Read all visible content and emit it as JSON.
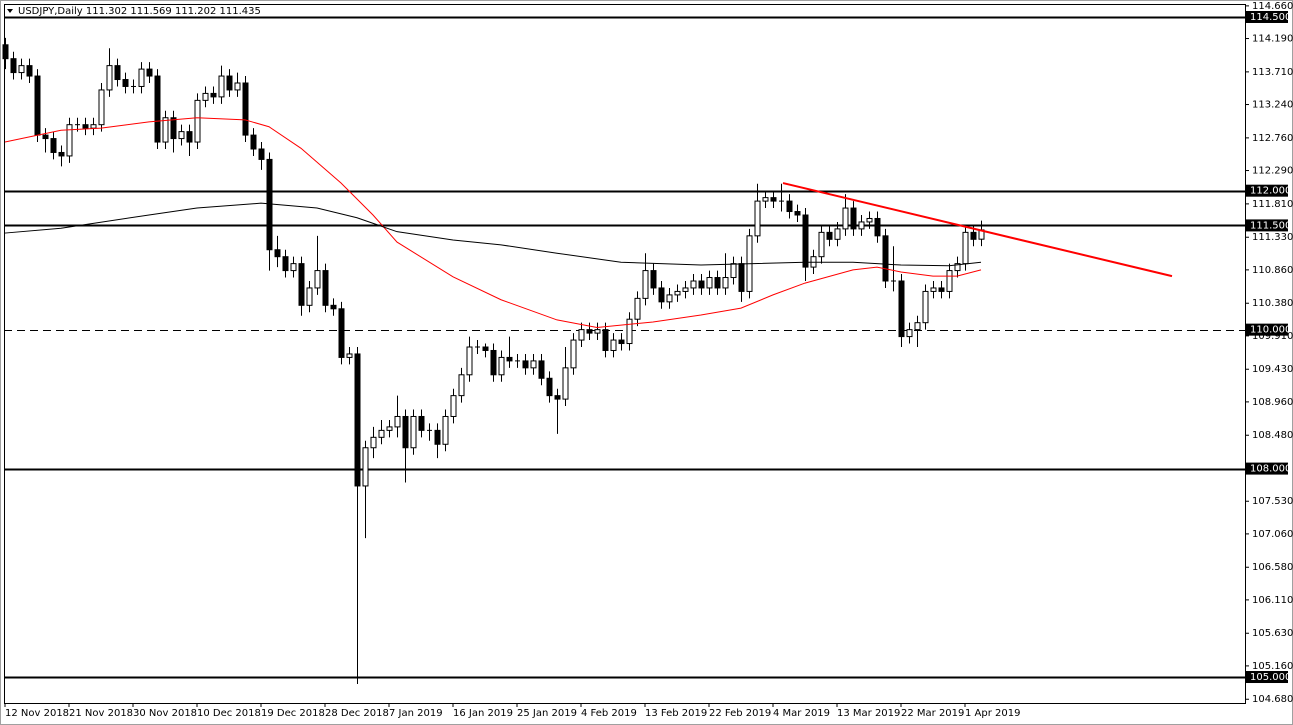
{
  "chart_data": {
    "type": "candlestick",
    "title": "USDJPY,Daily  111.302 111.569 111.202 111.435",
    "categories": [
      "12 Nov 2018",
      null,
      null,
      null,
      null,
      null,
      null,
      null,
      "21 Nov 2018",
      null,
      null,
      null,
      null,
      null,
      null,
      null,
      "30 Nov 2018",
      null,
      null,
      null,
      null,
      null,
      null,
      null,
      "10 Dec 2018",
      null,
      null,
      null,
      null,
      null,
      null,
      null,
      "19 Dec 2018",
      null,
      null,
      null,
      null,
      null,
      null,
      null,
      "28 Dec 2018",
      null,
      null,
      null,
      null,
      null,
      null,
      null,
      "7 Jan 2019",
      null,
      null,
      null,
      null,
      null,
      null,
      null,
      "16 Jan 2019",
      null,
      null,
      null,
      null,
      null,
      null,
      null,
      "25 Jan 2019",
      null,
      null,
      null,
      null,
      null,
      null,
      null,
      "4 Feb 2019",
      null,
      null,
      null,
      null,
      null,
      null,
      null,
      "13 Feb 2019",
      null,
      null,
      null,
      null,
      null,
      null,
      null,
      "22 Feb 2019",
      null,
      null,
      null,
      null,
      null,
      null,
      null,
      "4 Mar 2019",
      null,
      null,
      null,
      null,
      null,
      null,
      null,
      "13 Mar 2019",
      null,
      null,
      null,
      null,
      null,
      null,
      null,
      "22 Mar 2019",
      null,
      null,
      null,
      null,
      null,
      null,
      null,
      "1 Apr 2019",
      null,
      null
    ],
    "open": [
      114.1,
      113.9,
      113.7,
      113.8,
      113.65,
      112.8,
      112.75,
      112.55,
      112.5,
      112.95,
      112.95,
      112.9,
      112.95,
      113.45,
      113.8,
      113.6,
      113.5,
      113.5,
      113.75,
      113.65,
      112.7,
      113.05,
      112.75,
      112.85,
      112.7,
      113.3,
      113.4,
      113.35,
      113.65,
      113.45,
      113.55,
      112.8,
      112.6,
      112.45,
      111.15,
      111.05,
      110.85,
      110.95,
      110.35,
      110.6,
      110.85,
      110.35,
      110.3,
      109.6,
      109.65,
      107.75,
      108.3,
      108.45,
      108.55,
      108.6,
      108.75,
      108.3,
      108.75,
      108.55,
      108.55,
      108.35,
      108.75,
      109.05,
      109.35,
      109.75,
      109.75,
      109.7,
      109.35,
      109.6,
      109.55,
      109.55,
      109.45,
      109.55,
      109.3,
      109.05,
      109.0,
      109.45,
      109.85,
      110.0,
      109.95,
      110.0,
      109.7,
      109.85,
      109.8,
      110.15,
      110.45,
      110.85,
      110.6,
      110.4,
      110.5,
      110.55,
      110.6,
      110.7,
      110.6,
      110.75,
      110.6,
      110.75,
      110.95,
      110.55,
      111.35,
      111.85,
      111.9,
      111.85,
      111.85,
      111.7,
      111.65,
      110.9,
      111.05,
      111.4,
      111.3,
      111.45,
      111.75,
      111.45,
      111.55,
      111.6,
      111.35,
      110.7,
      110.7,
      109.9,
      110.0,
      110.1,
      110.55,
      110.6,
      110.55,
      110.85,
      110.95,
      111.4,
      111.302
    ],
    "high": [
      114.2,
      114.0,
      113.9,
      113.9,
      113.75,
      112.9,
      112.85,
      112.65,
      113.05,
      113.05,
      113.05,
      113.05,
      113.55,
      114.05,
      113.9,
      113.7,
      113.6,
      113.85,
      113.85,
      113.75,
      113.15,
      113.15,
      112.95,
      112.95,
      113.4,
      113.5,
      113.5,
      113.8,
      113.75,
      113.7,
      113.65,
      112.9,
      112.7,
      112.55,
      111.35,
      111.15,
      111.05,
      111.05,
      110.7,
      111.35,
      110.95,
      110.45,
      110.4,
      109.75,
      109.75,
      108.4,
      108.6,
      108.7,
      108.7,
      109.05,
      108.85,
      108.85,
      108.85,
      108.65,
      108.65,
      108.85,
      109.15,
      109.45,
      109.9,
      109.85,
      109.8,
      109.8,
      109.7,
      109.9,
      109.65,
      109.65,
      109.65,
      109.65,
      109.4,
      109.15,
      109.75,
      109.95,
      110.1,
      110.1,
      110.1,
      110.1,
      109.95,
      109.95,
      110.25,
      110.55,
      111.1,
      110.95,
      110.7,
      110.6,
      110.65,
      110.7,
      110.8,
      110.8,
      110.85,
      110.85,
      111.1,
      111.05,
      111.05,
      111.45,
      112.1,
      112.0,
      112.0,
      112.1,
      111.95,
      111.8,
      111.75,
      111.15,
      111.5,
      111.5,
      111.55,
      111.95,
      111.85,
      111.65,
      111.7,
      111.7,
      111.45,
      111.2,
      110.8,
      110.1,
      110.2,
      110.65,
      110.7,
      110.7,
      110.95,
      111.05,
      111.5,
      111.5,
      111.569
    ],
    "low": [
      113.75,
      113.6,
      113.6,
      113.55,
      112.7,
      112.55,
      112.45,
      112.35,
      112.4,
      112.85,
      112.8,
      112.8,
      112.85,
      113.35,
      113.5,
      113.4,
      113.4,
      113.4,
      113.55,
      112.6,
      112.6,
      112.55,
      112.65,
      112.5,
      112.6,
      113.2,
      113.25,
      113.25,
      113.35,
      113.35,
      112.7,
      112.5,
      112.3,
      110.85,
      110.9,
      110.75,
      110.75,
      110.2,
      110.25,
      110.5,
      110.25,
      110.2,
      109.5,
      109.5,
      104.9,
      107.0,
      108.15,
      108.35,
      108.45,
      108.45,
      107.8,
      108.2,
      108.45,
      108.4,
      108.15,
      108.25,
      108.65,
      108.95,
      109.25,
      109.65,
      109.6,
      109.25,
      109.25,
      109.45,
      109.45,
      109.35,
      109.35,
      109.2,
      108.95,
      108.5,
      108.9,
      109.35,
      109.75,
      109.85,
      109.85,
      109.6,
      109.6,
      109.7,
      109.7,
      110.05,
      110.35,
      110.5,
      110.3,
      110.3,
      110.4,
      110.45,
      110.5,
      110.5,
      110.5,
      110.5,
      110.5,
      110.65,
      110.4,
      110.45,
      111.25,
      111.75,
      111.75,
      111.7,
      111.6,
      111.55,
      110.7,
      110.8,
      110.95,
      111.2,
      111.2,
      111.35,
      111.35,
      111.35,
      111.45,
      111.25,
      110.6,
      110.55,
      109.75,
      109.8,
      109.75,
      110.0,
      110.45,
      110.45,
      110.45,
      110.75,
      110.85,
      111.2,
      111.202
    ],
    "close": [
      113.9,
      113.7,
      113.8,
      113.65,
      112.8,
      112.75,
      112.55,
      112.5,
      112.95,
      112.95,
      112.9,
      112.95,
      113.45,
      113.8,
      113.6,
      113.5,
      113.5,
      113.75,
      113.65,
      112.7,
      113.05,
      112.75,
      112.85,
      112.7,
      113.3,
      113.4,
      113.35,
      113.65,
      113.45,
      113.55,
      112.8,
      112.6,
      112.45,
      111.15,
      111.05,
      110.85,
      110.95,
      110.35,
      110.6,
      110.85,
      110.35,
      110.3,
      109.6,
      109.65,
      107.75,
      108.3,
      108.45,
      108.55,
      108.6,
      108.75,
      108.3,
      108.75,
      108.55,
      108.55,
      108.35,
      108.75,
      109.05,
      109.35,
      109.75,
      109.75,
      109.7,
      109.35,
      109.6,
      109.55,
      109.55,
      109.45,
      109.55,
      109.3,
      109.05,
      109.0,
      109.45,
      109.85,
      110.0,
      109.95,
      110.0,
      109.7,
      109.85,
      109.8,
      110.15,
      110.45,
      110.85,
      110.6,
      110.4,
      110.5,
      110.55,
      110.6,
      110.7,
      110.6,
      110.75,
      110.6,
      110.75,
      110.95,
      110.55,
      111.35,
      111.85,
      111.9,
      111.85,
      111.85,
      111.7,
      111.65,
      110.9,
      111.05,
      111.4,
      111.3,
      111.45,
      111.75,
      111.45,
      111.55,
      111.6,
      111.35,
      110.7,
      110.7,
      109.9,
      110.0,
      110.1,
      110.55,
      110.6,
      110.55,
      110.85,
      110.95,
      111.4,
      111.3,
      111.435
    ],
    "up_color": "#ffffff",
    "down_color": "#000000",
    "moving_averages": [
      {
        "color": "#ff0000",
        "x": [
          0,
          7,
          12,
          18,
          24,
          30,
          33,
          37,
          42,
          46,
          49,
          56,
          62,
          69,
          74,
          81,
          87,
          92,
          96,
          100,
          106,
          109,
          112,
          116,
          119,
          122
        ],
        "values": [
          112.7,
          112.87,
          112.9,
          112.99,
          113.05,
          113.02,
          112.92,
          112.61,
          112.11,
          111.65,
          111.26,
          110.76,
          110.43,
          110.14,
          110.03,
          110.11,
          110.21,
          110.31,
          110.5,
          110.67,
          110.86,
          110.9,
          110.83,
          110.77,
          110.77,
          110.86
        ]
      },
      {
        "color": "#000000",
        "x": [
          0,
          7,
          18,
          24,
          32,
          39,
          44,
          49,
          56,
          62,
          69,
          77,
          87,
          100,
          106,
          112,
          118,
          122
        ],
        "values": [
          111.39,
          111.46,
          111.65,
          111.75,
          111.82,
          111.75,
          111.61,
          111.41,
          111.29,
          111.22,
          111.1,
          110.97,
          110.93,
          110.97,
          110.97,
          110.93,
          110.92,
          110.97
        ]
      }
    ],
    "levels": [
      {
        "value": 114.5,
        "label": "114.500",
        "style": "solid"
      },
      {
        "value": 112,
        "label": "112.000",
        "style": "solid"
      },
      {
        "value": 111.5,
        "label": "111.500",
        "style": "solid"
      },
      {
        "value": 110,
        "label": "110.000",
        "style": "dashed"
      },
      {
        "value": 108,
        "label": "108.000",
        "style": "solid"
      },
      {
        "value": 105,
        "label": "105.000",
        "style": "solid"
      }
    ],
    "trendline": {
      "color": "#ff0000",
      "values": [
        112.11,
        110.77
      ]
    },
    "ylim": [
      104.626,
      114.687
    ],
    "yticks": [
      {
        "value": 114.66,
        "label": "114.660"
      },
      {
        "value": 114.19,
        "label": "114.190"
      },
      {
        "value": 113.71,
        "label": "113.710"
      },
      {
        "value": 113.24,
        "label": "113.240"
      },
      {
        "value": 112.76,
        "label": "112.760"
      },
      {
        "value": 112.29,
        "label": "112.290"
      },
      {
        "value": 111.81,
        "label": "111.810"
      },
      {
        "value": 111.33,
        "label": "111.330"
      },
      {
        "value": 110.86,
        "label": "110.860"
      },
      {
        "value": 110.38,
        "label": "110.380"
      },
      {
        "value": 109.91,
        "label": "109.910"
      },
      {
        "value": 109.43,
        "label": "109.430"
      },
      {
        "value": 108.96,
        "label": "108.960"
      },
      {
        "value": 108.48,
        "label": "108.480"
      },
      {
        "value": 107.53,
        "label": "107.530"
      },
      {
        "value": 107.06,
        "label": "107.060"
      },
      {
        "value": 106.58,
        "label": "106.580"
      },
      {
        "value": 106.11,
        "label": "106.110"
      },
      {
        "value": 105.63,
        "label": "105.630"
      },
      {
        "value": 105.16,
        "label": "105.160"
      },
      {
        "value": 104.68,
        "label": "104.680"
      }
    ],
    "grid": false
  }
}
